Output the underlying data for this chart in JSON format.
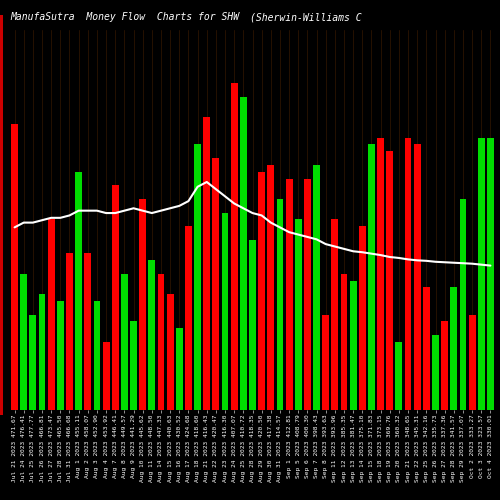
{
  "title_left": "ManufaSutra  Money Flow  Charts for SHW",
  "title_right": "(Sherwin-Williams C",
  "background_color": "#000000",
  "bar_colors": [
    "red",
    "green",
    "green",
    "green",
    "red",
    "green",
    "red",
    "green",
    "red",
    "green",
    "red",
    "red",
    "green",
    "green",
    "red",
    "green",
    "red",
    "red",
    "green",
    "red",
    "green",
    "red",
    "red",
    "green",
    "red",
    "green",
    "green",
    "red",
    "red",
    "green",
    "red",
    "green",
    "red",
    "green",
    "red",
    "red",
    "red",
    "green",
    "red",
    "green",
    "red",
    "red",
    "green",
    "red",
    "red",
    "red",
    "green",
    "red",
    "green",
    "green",
    "red",
    "green",
    "green"
  ],
  "bar_values": [
    420,
    200,
    140,
    170,
    280,
    160,
    230,
    350,
    230,
    160,
    100,
    330,
    200,
    130,
    310,
    220,
    200,
    170,
    120,
    270,
    390,
    430,
    370,
    290,
    480,
    460,
    250,
    350,
    360,
    310,
    340,
    280,
    340,
    360,
    140,
    280,
    200,
    190,
    270,
    390,
    400,
    380,
    100,
    400,
    390,
    180,
    110,
    130,
    180,
    310,
    140,
    400,
    400
  ],
  "line_values": [
    310,
    320,
    320,
    325,
    330,
    330,
    335,
    345,
    345,
    345,
    340,
    340,
    345,
    350,
    345,
    340,
    345,
    350,
    355,
    365,
    395,
    405,
    390,
    375,
    360,
    350,
    340,
    335,
    320,
    310,
    300,
    295,
    290,
    285,
    275,
    270,
    265,
    260,
    258,
    255,
    252,
    248,
    246,
    243,
    241,
    240,
    238,
    237,
    236,
    235,
    234,
    232,
    230
  ],
  "xlabels": [
    "Jul 21 2023 471.67",
    "Jul 24 2023 476.41",
    "Jul 25 2023 477.77",
    "Jul 26 2023 466.81",
    "Jul 27 2023 473.47",
    "Jul 28 2023 465.50",
    "Jul 31 2023 466.68",
    "Aug 1 2023 455.11",
    "Aug 2 2023 458.07",
    "Aug 3 2023 452.90",
    "Aug 4 2023 453.92",
    "Aug 7 2023 446.41",
    "Aug 8 2023 449.57",
    "Aug 9 2023 441.29",
    "Aug 10 2023 445.62",
    "Aug 11 2023 448.50",
    "Aug 14 2023 447.33",
    "Aug 15 2023 440.63",
    "Aug 16 2023 430.52",
    "Aug 17 2023 424.68",
    "Aug 18 2023 418.60",
    "Aug 21 2023 416.43",
    "Aug 22 2023 420.47",
    "Aug 23 2023 416.30",
    "Aug 24 2023 407.07",
    "Aug 25 2023 410.72",
    "Aug 28 2023 418.35",
    "Aug 29 2023 420.50",
    "Aug 30 2023 417.38",
    "Aug 31 2023 414.57",
    "Sep 1 2023 412.81",
    "Sep 5 2023 408.79",
    "Sep 6 2023 400.30",
    "Sep 7 2023 398.43",
    "Sep 8 2023 393.63",
    "Sep 11 2023 393.96",
    "Sep 12 2023 385.35",
    "Sep 13 2023 381.47",
    "Sep 14 2023 375.10",
    "Sep 15 2023 371.83",
    "Sep 18 2023 373.15",
    "Sep 19 2023 369.76",
    "Sep 20 2023 360.32",
    "Sep 21 2023 348.65",
    "Sep 22 2023 345.31",
    "Sep 25 2023 342.16",
    "Sep 26 2023 335.73",
    "Sep 27 2023 337.36",
    "Sep 28 2023 341.57",
    "Sep 29 2023 337.07",
    "Oct 2 2023 333.27",
    "Oct 3 2023 323.57",
    "Oct 4 2023 330.01"
  ],
  "line_color": "#ffffff",
  "red_color": "#ff0000",
  "green_color": "#00dd00",
  "title_color": "#ffffff",
  "title_fontsize": 7,
  "tick_color": "#ffffff",
  "tick_fontsize": 4.5,
  "grid_color": "#3a1a00",
  "left_bar_color": "#cc0000"
}
